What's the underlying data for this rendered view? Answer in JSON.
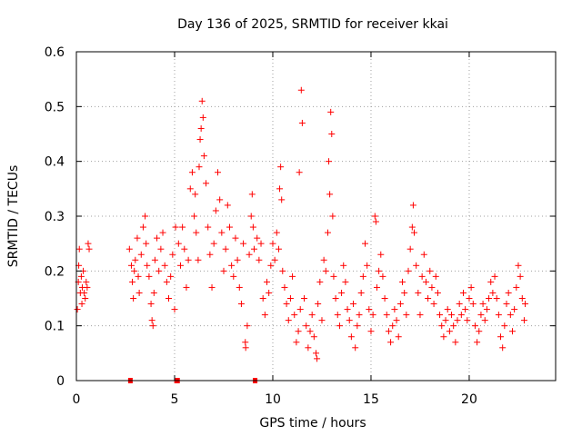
{
  "chart_data": {
    "type": "scatter",
    "title": "Day 136 of 2025, SRMTID for receiver kkai",
    "xlabel": "GPS time / hours",
    "ylabel": "SRMTID / TECUs",
    "xlim": [
      0,
      24.4
    ],
    "ylim": [
      0,
      0.6
    ],
    "x_ticks": [
      0,
      5,
      10,
      15,
      20
    ],
    "x_tick_labels": [
      "0",
      "5",
      "10",
      "15",
      "20"
    ],
    "y_ticks": [
      0,
      0.1,
      0.2,
      0.3,
      0.4,
      0.5,
      0.6
    ],
    "y_tick_labels": [
      "0",
      "0.1",
      "0.2",
      "0.3",
      "0.4",
      "0.5",
      "0.6"
    ],
    "grid": true,
    "marker": "plus",
    "color": "#ff0000",
    "zero_points": [
      {
        "x": 2.75,
        "y": 0
      },
      {
        "x": 5.1,
        "y": 0
      },
      {
        "x": 5.15,
        "y": 0
      },
      {
        "x": 9.1,
        "y": 0
      }
    ],
    "series": [
      {
        "name": "SRMTID",
        "points": [
          [
            0.05,
            0.13
          ],
          [
            0.1,
            0.18
          ],
          [
            0.12,
            0.21
          ],
          [
            0.15,
            0.24
          ],
          [
            0.2,
            0.16
          ],
          [
            0.25,
            0.19
          ],
          [
            0.28,
            0.14
          ],
          [
            0.3,
            0.17
          ],
          [
            0.35,
            0.2
          ],
          [
            0.4,
            0.16
          ],
          [
            0.45,
            0.15
          ],
          [
            0.5,
            0.18
          ],
          [
            0.55,
            0.17
          ],
          [
            0.6,
            0.25
          ],
          [
            0.65,
            0.24
          ],
          [
            2.7,
            0.24
          ],
          [
            2.8,
            0.21
          ],
          [
            2.85,
            0.18
          ],
          [
            2.9,
            0.15
          ],
          [
            2.95,
            0.2
          ],
          [
            3.0,
            0.22
          ],
          [
            3.1,
            0.26
          ],
          [
            3.15,
            0.19
          ],
          [
            3.2,
            0.16
          ],
          [
            3.3,
            0.23
          ],
          [
            3.4,
            0.28
          ],
          [
            3.5,
            0.3
          ],
          [
            3.55,
            0.25
          ],
          [
            3.6,
            0.21
          ],
          [
            3.7,
            0.19
          ],
          [
            3.8,
            0.14
          ],
          [
            3.85,
            0.11
          ],
          [
            3.9,
            0.1
          ],
          [
            3.95,
            0.16
          ],
          [
            4.0,
            0.22
          ],
          [
            4.1,
            0.26
          ],
          [
            4.2,
            0.2
          ],
          [
            4.3,
            0.24
          ],
          [
            4.4,
            0.27
          ],
          [
            4.5,
            0.21
          ],
          [
            4.6,
            0.18
          ],
          [
            4.7,
            0.15
          ],
          [
            4.8,
            0.19
          ],
          [
            4.9,
            0.23
          ],
          [
            5.0,
            0.13
          ],
          [
            5.05,
            0.28
          ],
          [
            5.2,
            0.25
          ],
          [
            5.3,
            0.21
          ],
          [
            5.4,
            0.28
          ],
          [
            5.5,
            0.24
          ],
          [
            5.6,
            0.17
          ],
          [
            5.7,
            0.22
          ],
          [
            5.8,
            0.35
          ],
          [
            5.9,
            0.38
          ],
          [
            6.0,
            0.3
          ],
          [
            6.05,
            0.34
          ],
          [
            6.1,
            0.27
          ],
          [
            6.2,
            0.22
          ],
          [
            6.25,
            0.39
          ],
          [
            6.3,
            0.44
          ],
          [
            6.35,
            0.46
          ],
          [
            6.4,
            0.51
          ],
          [
            6.45,
            0.48
          ],
          [
            6.5,
            0.41
          ],
          [
            6.6,
            0.36
          ],
          [
            6.7,
            0.28
          ],
          [
            6.8,
            0.23
          ],
          [
            6.9,
            0.17
          ],
          [
            7.0,
            0.25
          ],
          [
            7.1,
            0.31
          ],
          [
            7.2,
            0.38
          ],
          [
            7.3,
            0.33
          ],
          [
            7.4,
            0.27
          ],
          [
            7.5,
            0.2
          ],
          [
            7.6,
            0.24
          ],
          [
            7.7,
            0.32
          ],
          [
            7.8,
            0.28
          ],
          [
            7.9,
            0.21
          ],
          [
            8.0,
            0.19
          ],
          [
            8.1,
            0.26
          ],
          [
            8.2,
            0.22
          ],
          [
            8.3,
            0.17
          ],
          [
            8.4,
            0.14
          ],
          [
            8.5,
            0.25
          ],
          [
            8.6,
            0.07
          ],
          [
            8.62,
            0.06
          ],
          [
            8.7,
            0.1
          ],
          [
            8.8,
            0.23
          ],
          [
            8.9,
            0.3
          ],
          [
            8.95,
            0.34
          ],
          [
            9.0,
            0.28
          ],
          [
            9.05,
            0.24
          ],
          [
            9.2,
            0.26
          ],
          [
            9.3,
            0.22
          ],
          [
            9.4,
            0.25
          ],
          [
            9.5,
            0.15
          ],
          [
            9.6,
            0.12
          ],
          [
            9.7,
            0.18
          ],
          [
            9.8,
            0.16
          ],
          [
            9.9,
            0.21
          ],
          [
            10.0,
            0.25
          ],
          [
            10.1,
            0.22
          ],
          [
            10.2,
            0.27
          ],
          [
            10.3,
            0.24
          ],
          [
            10.35,
            0.35
          ],
          [
            10.4,
            0.39
          ],
          [
            10.45,
            0.33
          ],
          [
            10.5,
            0.2
          ],
          [
            10.6,
            0.17
          ],
          [
            10.7,
            0.14
          ],
          [
            10.8,
            0.11
          ],
          [
            10.9,
            0.15
          ],
          [
            11.0,
            0.19
          ],
          [
            11.1,
            0.12
          ],
          [
            11.2,
            0.07
          ],
          [
            11.3,
            0.09
          ],
          [
            11.35,
            0.38
          ],
          [
            11.4,
            0.13
          ],
          [
            11.45,
            0.53
          ],
          [
            11.5,
            0.47
          ],
          [
            11.6,
            0.15
          ],
          [
            11.7,
            0.1
          ],
          [
            11.8,
            0.06
          ],
          [
            11.9,
            0.09
          ],
          [
            12.0,
            0.12
          ],
          [
            12.1,
            0.08
          ],
          [
            12.2,
            0.05
          ],
          [
            12.25,
            0.04
          ],
          [
            12.3,
            0.14
          ],
          [
            12.4,
            0.18
          ],
          [
            12.5,
            0.11
          ],
          [
            12.6,
            0.22
          ],
          [
            12.7,
            0.2
          ],
          [
            12.8,
            0.27
          ],
          [
            12.85,
            0.4
          ],
          [
            12.9,
            0.34
          ],
          [
            12.95,
            0.49
          ],
          [
            13.0,
            0.45
          ],
          [
            13.05,
            0.3
          ],
          [
            13.1,
            0.19
          ],
          [
            13.2,
            0.15
          ],
          [
            13.3,
            0.12
          ],
          [
            13.4,
            0.1
          ],
          [
            13.5,
            0.16
          ],
          [
            13.6,
            0.21
          ],
          [
            13.7,
            0.18
          ],
          [
            13.8,
            0.13
          ],
          [
            13.9,
            0.11
          ],
          [
            14.0,
            0.08
          ],
          [
            14.1,
            0.14
          ],
          [
            14.2,
            0.06
          ],
          [
            14.3,
            0.1
          ],
          [
            14.4,
            0.12
          ],
          [
            14.5,
            0.16
          ],
          [
            14.6,
            0.19
          ],
          [
            14.7,
            0.25
          ],
          [
            14.8,
            0.21
          ],
          [
            14.9,
            0.13
          ],
          [
            15.0,
            0.09
          ],
          [
            15.1,
            0.12
          ],
          [
            15.2,
            0.3
          ],
          [
            15.25,
            0.29
          ],
          [
            15.3,
            0.17
          ],
          [
            15.4,
            0.2
          ],
          [
            15.5,
            0.23
          ],
          [
            15.6,
            0.19
          ],
          [
            15.7,
            0.15
          ],
          [
            15.8,
            0.12
          ],
          [
            15.9,
            0.09
          ],
          [
            16.0,
            0.07
          ],
          [
            16.1,
            0.1
          ],
          [
            16.2,
            0.13
          ],
          [
            16.3,
            0.11
          ],
          [
            16.4,
            0.08
          ],
          [
            16.5,
            0.14
          ],
          [
            16.6,
            0.18
          ],
          [
            16.7,
            0.16
          ],
          [
            16.8,
            0.12
          ],
          [
            16.9,
            0.2
          ],
          [
            17.0,
            0.24
          ],
          [
            17.1,
            0.28
          ],
          [
            17.15,
            0.32
          ],
          [
            17.2,
            0.27
          ],
          [
            17.3,
            0.21
          ],
          [
            17.4,
            0.16
          ],
          [
            17.5,
            0.12
          ],
          [
            17.6,
            0.19
          ],
          [
            17.7,
            0.23
          ],
          [
            17.8,
            0.18
          ],
          [
            17.9,
            0.15
          ],
          [
            18.0,
            0.2
          ],
          [
            18.1,
            0.17
          ],
          [
            18.2,
            0.14
          ],
          [
            18.3,
            0.19
          ],
          [
            18.4,
            0.16
          ],
          [
            18.5,
            0.12
          ],
          [
            18.6,
            0.1
          ],
          [
            18.7,
            0.08
          ],
          [
            18.8,
            0.11
          ],
          [
            18.9,
            0.13
          ],
          [
            19.0,
            0.09
          ],
          [
            19.1,
            0.12
          ],
          [
            19.2,
            0.1
          ],
          [
            19.3,
            0.07
          ],
          [
            19.4,
            0.11
          ],
          [
            19.5,
            0.14
          ],
          [
            19.6,
            0.12
          ],
          [
            19.7,
            0.16
          ],
          [
            19.8,
            0.13
          ],
          [
            19.9,
            0.11
          ],
          [
            20.0,
            0.15
          ],
          [
            20.1,
            0.17
          ],
          [
            20.2,
            0.14
          ],
          [
            20.3,
            0.1
          ],
          [
            20.4,
            0.07
          ],
          [
            20.5,
            0.09
          ],
          [
            20.6,
            0.12
          ],
          [
            20.7,
            0.14
          ],
          [
            20.8,
            0.11
          ],
          [
            20.9,
            0.13
          ],
          [
            21.0,
            0.15
          ],
          [
            21.1,
            0.18
          ],
          [
            21.2,
            0.16
          ],
          [
            21.3,
            0.19
          ],
          [
            21.4,
            0.15
          ],
          [
            21.5,
            0.12
          ],
          [
            21.6,
            0.08
          ],
          [
            21.7,
            0.06
          ],
          [
            21.8,
            0.1
          ],
          [
            21.9,
            0.14
          ],
          [
            22.0,
            0.16
          ],
          [
            22.1,
            0.12
          ],
          [
            22.2,
            0.09
          ],
          [
            22.3,
            0.13
          ],
          [
            22.4,
            0.17
          ],
          [
            22.5,
            0.21
          ],
          [
            22.6,
            0.19
          ],
          [
            22.7,
            0.15
          ],
          [
            22.8,
            0.11
          ],
          [
            22.85,
            0.14
          ]
        ]
      }
    ]
  }
}
